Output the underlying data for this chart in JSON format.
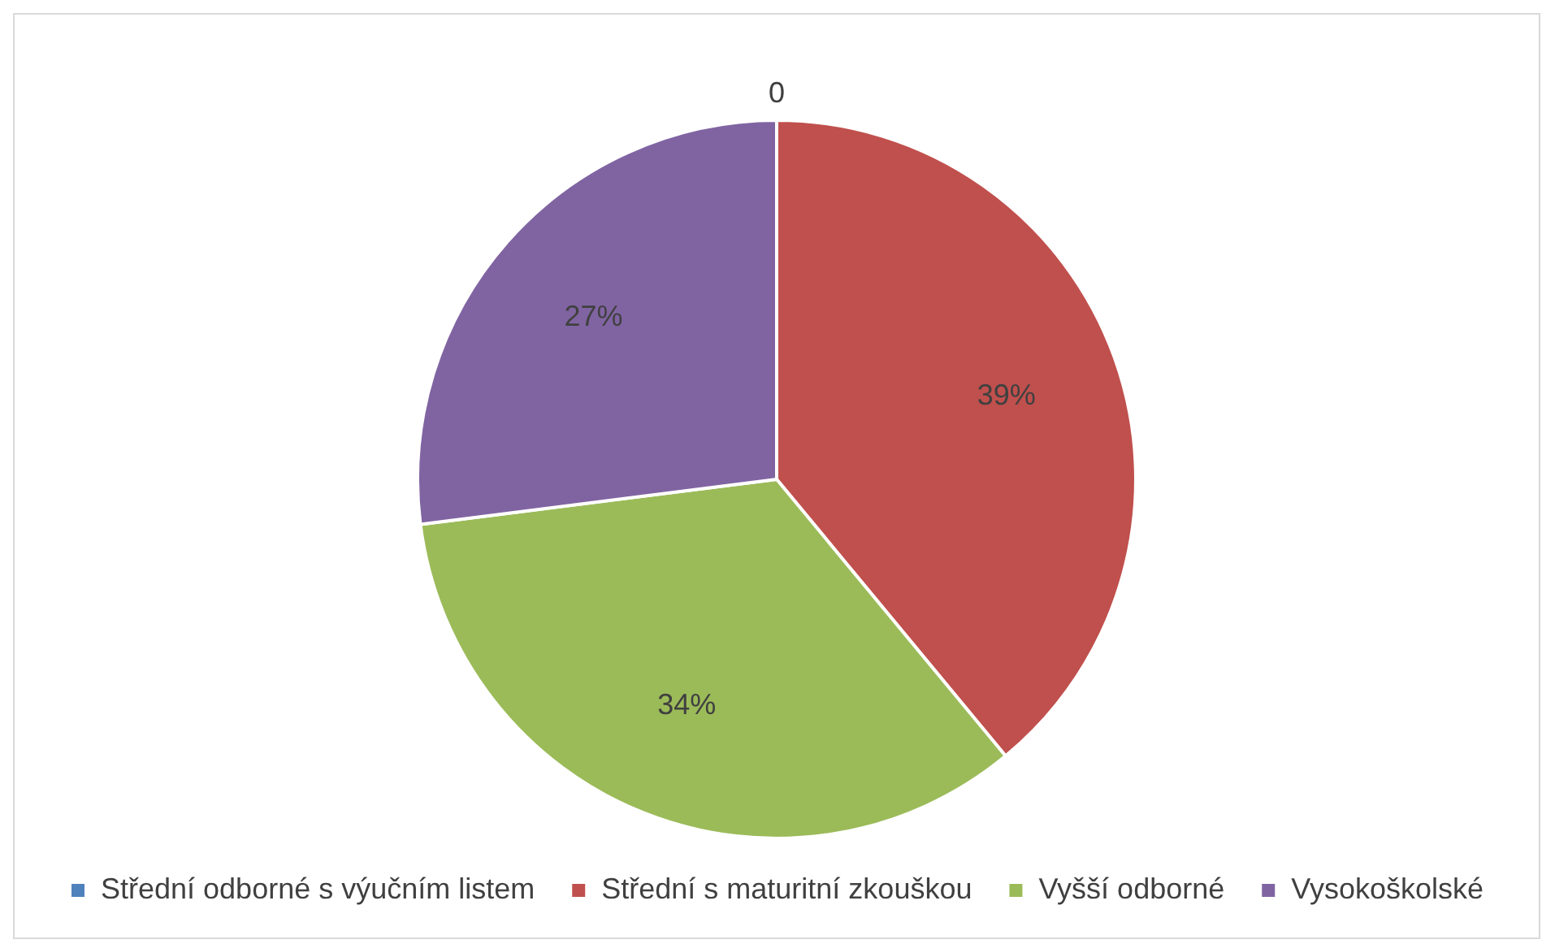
{
  "chart_data": {
    "type": "pie",
    "categories": [
      "Střední odborné s výučním listem",
      "Střední s maturitní zkouškou",
      "Vyšší odborné",
      "Vysokoškolské"
    ],
    "values": [
      0,
      39,
      34,
      27
    ],
    "colors": [
      "#4f81bd",
      "#c0504d",
      "#9bbb59",
      "#8064a2"
    ],
    "value_labels": [
      "0",
      "39%",
      "34%",
      "27%"
    ],
    "legend": "bottom"
  }
}
